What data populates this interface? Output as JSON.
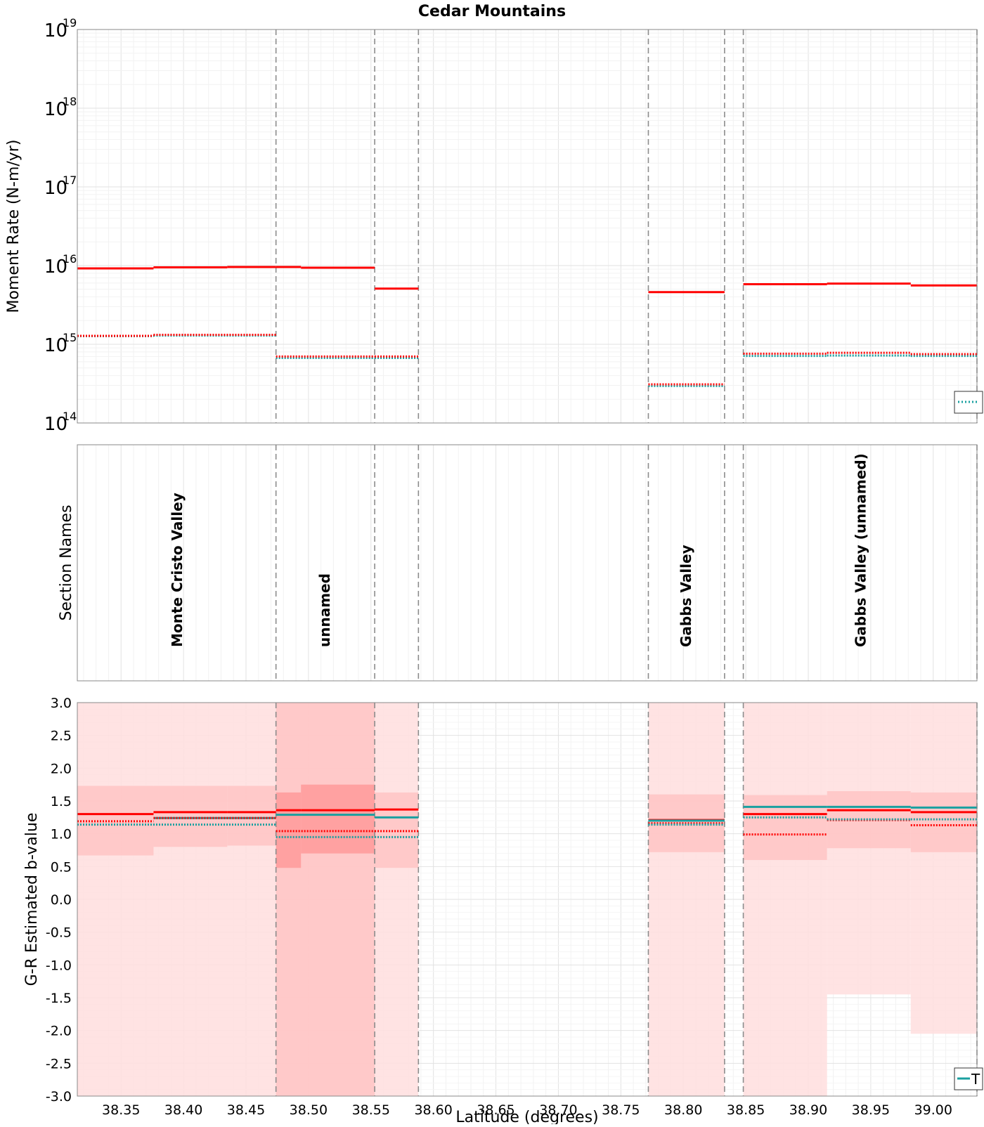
{
  "title": "Cedar Mountains",
  "colors": {
    "red": "#ff0000",
    "teal": "#1aa0a0",
    "band_light": "#ffdede",
    "band_mid": "#ffc4c4",
    "band_dark": "#ff9a9a",
    "divider": "#8c8c8c",
    "grid": "#e6e6e6",
    "axis": "#555555"
  },
  "chart_data": [
    {
      "type": "line",
      "name": "moment-rate",
      "yscale": "log",
      "ylabel": "Moment Rate (N-m/yr)",
      "xlim": [
        38.315,
        39.035
      ],
      "ylim_exp": [
        14,
        19
      ],
      "ytick_base": "10",
      "yticks_exp": [
        "14",
        "15",
        "16",
        "17",
        "18",
        "19"
      ],
      "section_boundaries": [
        38.474,
        38.553,
        38.588,
        38.772,
        38.833,
        38.848,
        39.035
      ],
      "series": [
        {
          "name": "Moment rate (red solid)",
          "color": "red",
          "style": "solid",
          "steps": [
            [
              38.315,
              38.376,
              9200000000000000.0
            ],
            [
              38.376,
              38.435,
              9500000000000000.0
            ],
            [
              38.435,
              38.474,
              9600000000000000.0
            ],
            [
              38.474,
              38.494,
              9600000000000000.0
            ],
            [
              38.494,
              38.553,
              9400000000000000.0
            ],
            [
              38.553,
              38.588,
              5100000000000000.0
            ],
            [
              38.772,
              38.833,
              4600000000000000.0
            ],
            [
              38.848,
              38.915,
              5800000000000000.0
            ],
            [
              38.915,
              38.982,
              5900000000000000.0
            ],
            [
              38.982,
              39.035,
              5600000000000000.0
            ]
          ]
        },
        {
          "name": "Moment rate (teal dotted)",
          "color": "teal",
          "style": "dotted",
          "steps": [
            [
              38.315,
              38.376,
              1270000000000000.0
            ],
            [
              38.376,
              38.474,
              1290000000000000.0
            ],
            [
              38.474,
              38.553,
              670000000000000.0
            ],
            [
              38.553,
              38.588,
              670000000000000.0
            ],
            [
              38.772,
              38.833,
              295000000000000.0
            ],
            [
              38.848,
              38.915,
              710000000000000.0
            ],
            [
              38.915,
              38.982,
              720000000000000.0
            ],
            [
              38.982,
              39.035,
              710000000000000.0
            ]
          ]
        },
        {
          "name": "Moment rate (red dotted)",
          "color": "red",
          "style": "dotted",
          "steps": [
            [
              38.315,
              38.376,
              1280000000000000.0
            ],
            [
              38.376,
              38.474,
              1320000000000000.0
            ],
            [
              38.474,
              38.553,
              700000000000000.0
            ],
            [
              38.553,
              38.588,
              700000000000000.0
            ],
            [
              38.772,
              38.833,
              310000000000000.0
            ],
            [
              38.848,
              38.915,
              760000000000000.0
            ],
            [
              38.915,
              38.982,
              780000000000000.0
            ],
            [
              38.982,
              39.035,
              750000000000000.0
            ]
          ]
        }
      ]
    },
    {
      "type": "table",
      "name": "section-names",
      "ylabel": "Section Names",
      "labels": [
        {
          "text": "Monte Cristo Valley",
          "x": 38.395
        },
        {
          "text": "unnamed",
          "x": 38.513
        },
        {
          "text": "Gabbs Valley",
          "x": 38.802
        },
        {
          "text": "Gabbs Valley (unnamed)",
          "x": 38.942
        }
      ]
    },
    {
      "type": "line",
      "name": "b-value",
      "ylabel": "G-R Estimated b-value",
      "xlabel": "Latitude (degrees)",
      "xlim": [
        38.315,
        39.035
      ],
      "ylim": [
        -3.0,
        3.0
      ],
      "yticks": [
        "3.0",
        "2.5",
        "2.0",
        "1.5",
        "1.0",
        "0.5",
        "0.0",
        "-0.5",
        "-1.0",
        "-1.5",
        "-2.0",
        "-2.5",
        "-3.0"
      ],
      "xticks": [
        "38.35",
        "38.40",
        "38.45",
        "38.50",
        "38.55",
        "38.60",
        "38.65",
        "38.70",
        "38.75",
        "38.80",
        "38.85",
        "38.90",
        "38.95",
        "39.00"
      ],
      "bands": [
        {
          "tone": "band_light",
          "rects": [
            [
              38.315,
              38.588,
              -3,
              3
            ],
            [
              38.772,
              38.833,
              -3,
              3
            ],
            [
              38.848,
              38.915,
              -3,
              3
            ],
            [
              38.915,
              38.982,
              -1.45,
              3
            ],
            [
              38.982,
              39.035,
              -2.05,
              3
            ]
          ]
        },
        {
          "tone": "band_mid",
          "rects": [
            [
              38.474,
              38.553,
              -3,
              3
            ],
            [
              38.315,
              38.376,
              0.67,
              1.73
            ],
            [
              38.376,
              38.435,
              0.8,
              1.73
            ],
            [
              38.435,
              38.474,
              0.82,
              1.73
            ],
            [
              38.553,
              38.588,
              0.48,
              1.63
            ],
            [
              38.772,
              38.833,
              0.72,
              1.6
            ],
            [
              38.848,
              38.915,
              0.6,
              1.59
            ],
            [
              38.915,
              38.982,
              0.78,
              1.65
            ],
            [
              38.982,
              39.035,
              0.72,
              1.63
            ]
          ]
        },
        {
          "tone": "band_dark",
          "rects": [
            [
              38.474,
              38.494,
              0.48,
              1.63
            ],
            [
              38.494,
              38.553,
              0.7,
              1.75
            ]
          ]
        }
      ],
      "series": [
        {
          "name": "b-value (red solid)",
          "color": "red",
          "style": "solid",
          "steps": [
            [
              38.315,
              38.376,
              1.3
            ],
            [
              38.376,
              38.435,
              1.33
            ],
            [
              38.435,
              38.474,
              1.33
            ],
            [
              38.474,
              38.494,
              1.36
            ],
            [
              38.494,
              38.553,
              1.36
            ],
            [
              38.553,
              38.588,
              1.37
            ],
            [
              38.772,
              38.833,
              1.21
            ],
            [
              38.848,
              38.915,
              1.3
            ],
            [
              38.915,
              38.982,
              1.36
            ],
            [
              38.982,
              39.035,
              1.33
            ]
          ]
        },
        {
          "name": "b-value (teal solid)",
          "color": "teal",
          "style": "solid",
          "steps": [
            [
              38.376,
              38.474,
              1.24
            ],
            [
              38.474,
              38.553,
              1.29
            ],
            [
              38.553,
              38.588,
              1.25
            ],
            [
              38.772,
              38.833,
              1.2
            ],
            [
              38.848,
              38.915,
              1.41
            ],
            [
              38.915,
              38.982,
              1.41
            ],
            [
              38.982,
              39.035,
              1.4
            ]
          ]
        },
        {
          "name": "b-value (red dotted)",
          "color": "red",
          "style": "dotted",
          "steps": [
            [
              38.315,
              38.376,
              1.19
            ],
            [
              38.376,
              38.474,
              1.24
            ],
            [
              38.474,
              38.553,
              1.04
            ],
            [
              38.553,
              38.588,
              1.04
            ],
            [
              38.772,
              38.833,
              1.16
            ],
            [
              38.848,
              38.915,
              0.99
            ],
            [
              38.915,
              38.982,
              1.21
            ],
            [
              38.982,
              39.035,
              1.13
            ]
          ]
        },
        {
          "name": "b-value (teal dotted)",
          "color": "teal",
          "style": "dotted",
          "steps": [
            [
              38.315,
              38.474,
              1.14
            ],
            [
              38.474,
              38.553,
              0.95
            ],
            [
              38.553,
              38.588,
              0.95
            ],
            [
              38.772,
              38.833,
              1.14
            ],
            [
              38.848,
              38.915,
              1.25
            ],
            [
              38.915,
              38.982,
              1.22
            ],
            [
              38.982,
              39.035,
              1.22
            ]
          ]
        }
      ],
      "legend_text": "T"
    }
  ]
}
